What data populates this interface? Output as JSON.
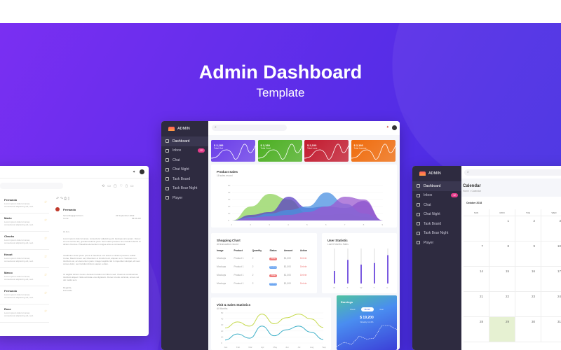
{
  "hero": {
    "title": "Admin Dashboard",
    "subtitle": "Template"
  },
  "sidebar": {
    "logo": "ADMIN",
    "items": [
      {
        "label": "Dashboard",
        "icon": "grid-icon"
      },
      {
        "label": "Inbox",
        "icon": "inbox-icon",
        "badge": "12"
      },
      {
        "label": "Chat",
        "icon": "chat-icon"
      },
      {
        "label": "Chat Night",
        "icon": "chat-icon"
      },
      {
        "label": "Task Board",
        "icon": "board-icon"
      },
      {
        "label": "Task Boar Night",
        "icon": "monitor-icon"
      },
      {
        "label": "Player",
        "icon": "music-icon"
      }
    ]
  },
  "stats": [
    {
      "value": "$ 2,189",
      "label": "Total Out",
      "color": "#6a3de8"
    },
    {
      "value": "$ 2,189",
      "label": "Total Cost",
      "color": "#4caf22"
    },
    {
      "value": "$ 2,100",
      "label": "Total Loss",
      "color": "#c21a2e"
    },
    {
      "value": "$ 2,180",
      "label": "Total Income",
      "color": "#ef6c0d"
    }
  ],
  "product_sales": {
    "title": "Product Sales",
    "subtitle": "18 sales record",
    "y_ticks": [
      "50",
      "40",
      "30",
      "20",
      "10",
      "0"
    ],
    "x_ticks": [
      "1",
      "2",
      "3",
      "4",
      "5",
      "6",
      "7",
      "8",
      "9"
    ],
    "series": [
      {
        "color": "#8fd35b",
        "values": [
          0,
          20,
          38,
          30,
          10,
          8,
          10,
          5,
          0
        ]
      },
      {
        "color": "#5b3fc4",
        "values": [
          0,
          8,
          12,
          34,
          18,
          20,
          18,
          28,
          0
        ]
      },
      {
        "color": "#4a90e2",
        "values": [
          0,
          5,
          10,
          15,
          20,
          40,
          24,
          10,
          0
        ]
      },
      {
        "color": "#9b59d0",
        "values": [
          0,
          4,
          6,
          8,
          12,
          20,
          34,
          30,
          0
        ]
      }
    ]
  },
  "shopping": {
    "title": "Shopping Chart",
    "subtitle": "All transaction record",
    "headers": [
      "Image",
      "Product",
      "Quantity",
      "Status",
      "Amount",
      "Action"
    ],
    "rows": [
      {
        "image": "Mockups",
        "product": "Product 1",
        "qty": "2",
        "status": "Done",
        "amount": "$1,000",
        "action": "Delete"
      },
      {
        "image": "Mockups",
        "product": "Product 1",
        "qty": "2",
        "status": "Pending",
        "amount": "$1,000",
        "action": "Delete"
      },
      {
        "image": "Mockups",
        "product": "Product 1",
        "qty": "2",
        "status": "Done",
        "amount": "$1,000",
        "action": "Delete"
      },
      {
        "image": "Mockups",
        "product": "Product 1",
        "qty": "2",
        "status": "Pending",
        "amount": "$1,000",
        "action": "Delete"
      }
    ]
  },
  "user_stat": {
    "title": "User Statistic",
    "subtitle": "Last 6 Months Sales",
    "labels": [
      "M",
      "T",
      "W",
      "T",
      "F"
    ],
    "values": [
      40,
      75,
      60,
      65,
      90
    ]
  },
  "visits": {
    "title": "Visit & Sales Statistics",
    "subtitle": "All Months",
    "y_ticks": [
      "50",
      "40",
      "30",
      "20",
      "10",
      "0"
    ],
    "months": [
      "Jan",
      "Feb",
      "Mar",
      "Apr",
      "May",
      "Jun",
      "Jul",
      "Aug",
      "Sep"
    ],
    "series": [
      {
        "color": "#c5d94a",
        "values": [
          25,
          35,
          28,
          48,
          32,
          42,
          48,
          40,
          26
        ]
      },
      {
        "color": "#3fb0c8",
        "values": [
          5,
          15,
          8,
          28,
          12,
          22,
          28,
          18,
          6
        ]
      }
    ]
  },
  "earnings": {
    "title": "Earnings",
    "tabs": [
      "Week",
      "Month",
      "Year"
    ],
    "active_tab": 1,
    "value": "$ 19,200",
    "sub": "Weekly 11.4%",
    "values": [
      2,
      6,
      4,
      12,
      9,
      10,
      22,
      22,
      18
    ]
  },
  "calendar": {
    "title": "Calendar",
    "breadcrumb": "Home > Calendar",
    "month": "October 2018",
    "days": [
      "SUN",
      "MON",
      "TUE",
      "WED"
    ],
    "weeks": [
      [
        "",
        "1",
        "2",
        "3"
      ],
      [
        "7",
        "8",
        "9",
        "10"
      ],
      [
        "14",
        "15",
        "16",
        "17"
      ],
      [
        "21",
        "22",
        "23",
        "24"
      ],
      [
        "28",
        "29",
        "30",
        "31"
      ]
    ],
    "today": "29"
  },
  "mail": {
    "list": [
      {
        "name": "Fernando"
      },
      {
        "name": "Mario"
      },
      {
        "name": "Chacks"
      },
      {
        "name": "Knoot"
      },
      {
        "name": "Marco"
      },
      {
        "name": "Fernando"
      },
      {
        "name": "Rose"
      }
    ],
    "snippet": "Lorem ipsum dolor sit amet, consectetur adipiscing elit, sed.",
    "sender": "Fernando",
    "email": "fernando@gmail.com",
    "to": "to me",
    "date": "22 September 2019",
    "time": "09:41 AM",
    "greeting": "Hi Jen,",
    "body1": "Lorem ipsum dolor sit amet, consectetur adipiscing elit. Quisque arcu quam. Donec at urna luctus nisl, gravida eleifend justo. Sed mattis posuere arcu iaculis lobortis id dictum rhoncus. Phasellus elementum congue arcu eu consectetur.",
    "body2": "Vestibulum ante ipsum primis in faucibus orci luctus et ultrices posuere cubilia Curae; Mauris lorem est, bibendum et tincidunt vel, aliquam a mi. Vivamus non tincidunt est, ac elementum justo. Integer sagittis nisl in imperdiet volutpat, elit sem cursus dolor, nec tincidunt dictum sapien a diam.",
    "body3": "Ut sagittis dictum metus. Aenean tincidunt orci libero sed. Vivamus condimentum tincidunt aliquet. Nulla vehicula eros dignissim. Donec id odio vehicula, ornare vel dui mattis sem.",
    "signoff": "Regards,",
    "signature": "Fernando"
  }
}
